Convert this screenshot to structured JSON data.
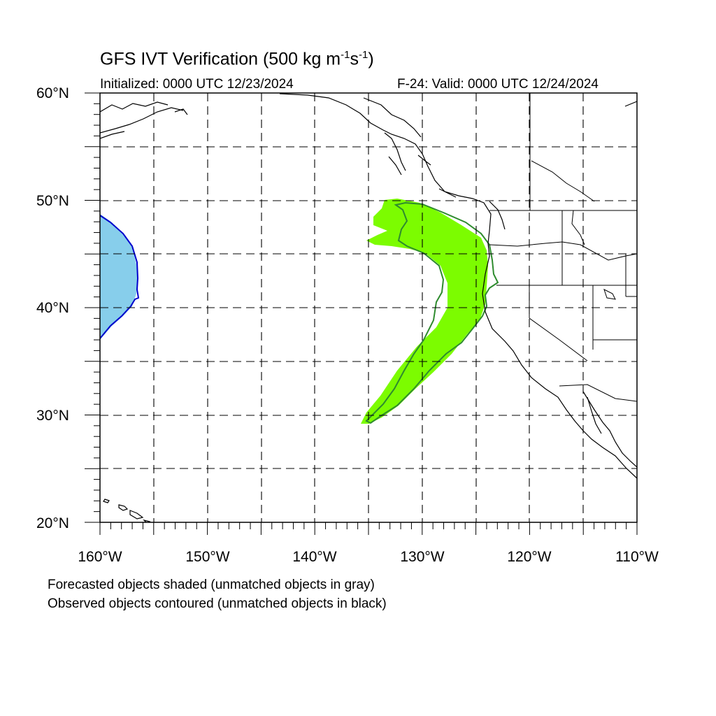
{
  "title": {
    "prefix": "GFS IVT Verification (500 kg m",
    "sup1": "-1",
    "mid": "s",
    "sup2": "-1",
    "suffix": ")"
  },
  "initialized": "Initialized: 0000 UTC 12/23/2024",
  "valid": "F-24: Valid: 0000 UTC 12/24/2024",
  "lat_labels": [
    "60°N",
    "50°N",
    "40°N",
    "30°N",
    "20°N"
  ],
  "lon_labels": [
    "160°W",
    "150°W",
    "140°W",
    "130°W",
    "120°W",
    "110°W"
  ],
  "notes": [
    "Forecasted objects shaded (unmatched objects in gray)",
    "Observed objects contoured (unmatched objects in black)"
  ],
  "map": {
    "lon_range": [
      -160,
      -110
    ],
    "lat_range": [
      20,
      60
    ],
    "grid_spacing_deg": 5,
    "colors": {
      "matched_forecast_fill": "#7cfc00",
      "matched_observed_contour": "#2e8b2e",
      "pair2_forecast_fill": "#87ceeb",
      "pair2_observed_contour": "#0000cd",
      "coastline": "#000000",
      "grid": "#000000"
    }
  }
}
